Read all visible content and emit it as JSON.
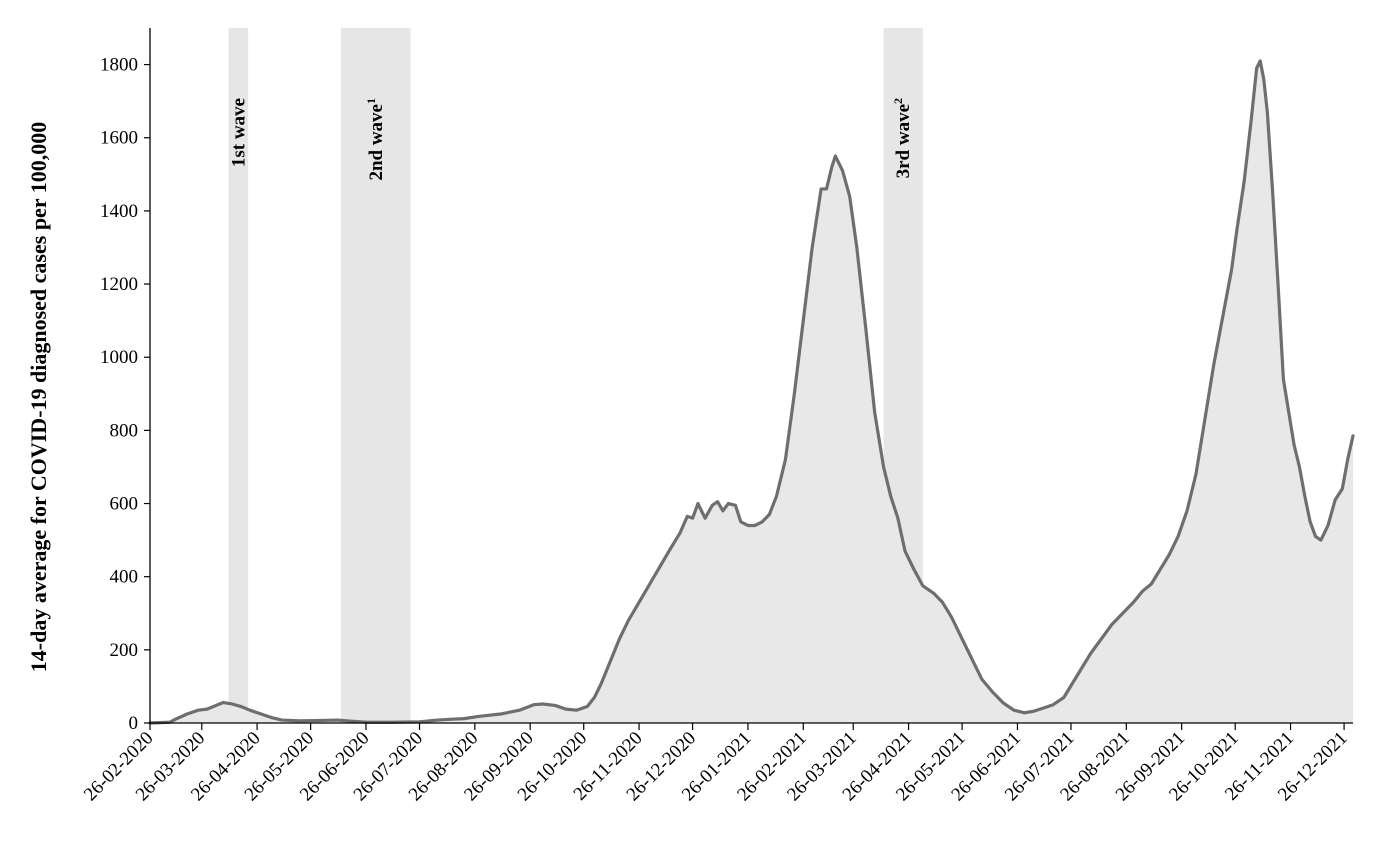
{
  "chart_data": {
    "type": "area",
    "title": "",
    "xlabel": "",
    "ylabel": "14-day average for COVID-19 diagnosed cases per 100,000",
    "ylim": [
      0,
      1900
    ],
    "y_ticks": [
      0,
      200,
      400,
      600,
      800,
      1000,
      1200,
      1400,
      1600,
      1800
    ],
    "x_range": [
      "2020-02-26",
      "2021-12-31"
    ],
    "x_ticks": [
      {
        "date": "2020-02-26",
        "label": "26-02-2020"
      },
      {
        "date": "2020-03-26",
        "label": "26-03-2020"
      },
      {
        "date": "2020-04-26",
        "label": "26-04-2020"
      },
      {
        "date": "2020-05-26",
        "label": "26-05-2020"
      },
      {
        "date": "2020-06-26",
        "label": "26-06-2020"
      },
      {
        "date": "2020-07-26",
        "label": "26-07-2020"
      },
      {
        "date": "2020-08-26",
        "label": "26-08-2020"
      },
      {
        "date": "2020-09-26",
        "label": "26-09-2020"
      },
      {
        "date": "2020-10-26",
        "label": "26-10-2020"
      },
      {
        "date": "2020-11-26",
        "label": "26-11-2020"
      },
      {
        "date": "2020-12-26",
        "label": "26-12-2020"
      },
      {
        "date": "2021-01-26",
        "label": "26-01-2021"
      },
      {
        "date": "2021-02-26",
        "label": "26-02-2021"
      },
      {
        "date": "2021-03-26",
        "label": "26-03-2021"
      },
      {
        "date": "2021-04-26",
        "label": "26-04-2021"
      },
      {
        "date": "2021-05-26",
        "label": "26-05-2021"
      },
      {
        "date": "2021-06-26",
        "label": "26-06-2021"
      },
      {
        "date": "2021-07-26",
        "label": "26-07-2021"
      },
      {
        "date": "2021-08-26",
        "label": "26-08-2021"
      },
      {
        "date": "2021-09-26",
        "label": "26-09-2021"
      },
      {
        "date": "2021-10-26",
        "label": "26-10-2021"
      },
      {
        "date": "2021-11-26",
        "label": "26-11-2021"
      },
      {
        "date": "2021-12-26",
        "label": "26-12-2021"
      }
    ],
    "bands": [
      {
        "label": "1st wave",
        "sup": "",
        "start": "2020-04-10",
        "end": "2020-04-21"
      },
      {
        "label": "2nd wave",
        "sup": "1",
        "start": "2020-06-12",
        "end": "2020-07-21"
      },
      {
        "label": "3rd wave",
        "sup": "2",
        "start": "2021-04-12",
        "end": "2021-05-04"
      }
    ],
    "grid": false,
    "line_color": "#6e6e6e",
    "fill_color": "#e8e8e8",
    "band_color": "#e6e6e6",
    "series": [
      {
        "points": [
          [
            "2020-02-26",
            0
          ],
          [
            "2020-03-08",
            2
          ],
          [
            "2020-03-12",
            12
          ],
          [
            "2020-03-18",
            25
          ],
          [
            "2020-03-24",
            35
          ],
          [
            "2020-03-29",
            38
          ],
          [
            "2020-04-03",
            48
          ],
          [
            "2020-04-07",
            56
          ],
          [
            "2020-04-12",
            52
          ],
          [
            "2020-04-17",
            45
          ],
          [
            "2020-04-22",
            35
          ],
          [
            "2020-04-28",
            25
          ],
          [
            "2020-05-04",
            15
          ],
          [
            "2020-05-10",
            8
          ],
          [
            "2020-05-20",
            6
          ],
          [
            "2020-06-01",
            7
          ],
          [
            "2020-06-10",
            8
          ],
          [
            "2020-06-18",
            5
          ],
          [
            "2020-06-26",
            2
          ],
          [
            "2020-07-10",
            2
          ],
          [
            "2020-07-26",
            3
          ],
          [
            "2020-08-05",
            8
          ],
          [
            "2020-08-12",
            10
          ],
          [
            "2020-08-20",
            12
          ],
          [
            "2020-08-28",
            18
          ],
          [
            "2020-09-10",
            25
          ],
          [
            "2020-09-20",
            35
          ],
          [
            "2020-09-28",
            50
          ],
          [
            "2020-10-03",
            52
          ],
          [
            "2020-10-10",
            48
          ],
          [
            "2020-10-16",
            38
          ],
          [
            "2020-10-22",
            35
          ],
          [
            "2020-10-28",
            45
          ],
          [
            "2020-11-01",
            70
          ],
          [
            "2020-11-05",
            110
          ],
          [
            "2020-11-10",
            170
          ],
          [
            "2020-11-15",
            230
          ],
          [
            "2020-11-20",
            280
          ],
          [
            "2020-11-26",
            330
          ],
          [
            "2020-12-02",
            380
          ],
          [
            "2020-12-08",
            430
          ],
          [
            "2020-12-14",
            480
          ],
          [
            "2020-12-19",
            520
          ],
          [
            "2020-12-23",
            565
          ],
          [
            "2020-12-26",
            560
          ],
          [
            "2020-12-29",
            600
          ],
          [
            "2021-01-02",
            560
          ],
          [
            "2021-01-06",
            595
          ],
          [
            "2021-01-09",
            605
          ],
          [
            "2021-01-12",
            580
          ],
          [
            "2021-01-15",
            600
          ],
          [
            "2021-01-19",
            595
          ],
          [
            "2021-01-22",
            550
          ],
          [
            "2021-01-26",
            540
          ],
          [
            "2021-01-30",
            540
          ],
          [
            "2021-02-03",
            550
          ],
          [
            "2021-02-07",
            570
          ],
          [
            "2021-02-11",
            620
          ],
          [
            "2021-02-16",
            720
          ],
          [
            "2021-02-21",
            900
          ],
          [
            "2021-02-26",
            1100
          ],
          [
            "2021-03-03",
            1300
          ],
          [
            "2021-03-08",
            1460
          ],
          [
            "2021-03-11",
            1460
          ],
          [
            "2021-03-14",
            1520
          ],
          [
            "2021-03-16",
            1550
          ],
          [
            "2021-03-20",
            1510
          ],
          [
            "2021-03-24",
            1440
          ],
          [
            "2021-03-28",
            1300
          ],
          [
            "2021-04-02",
            1080
          ],
          [
            "2021-04-07",
            850
          ],
          [
            "2021-04-12",
            700
          ],
          [
            "2021-04-16",
            620
          ],
          [
            "2021-04-20",
            560
          ],
          [
            "2021-04-24",
            470
          ],
          [
            "2021-04-29",
            420
          ],
          [
            "2021-05-04",
            375
          ],
          [
            "2021-05-10",
            355
          ],
          [
            "2021-05-15",
            330
          ],
          [
            "2021-05-20",
            290
          ],
          [
            "2021-05-26",
            230
          ],
          [
            "2021-06-01",
            170
          ],
          [
            "2021-06-06",
            120
          ],
          [
            "2021-06-12",
            85
          ],
          [
            "2021-06-18",
            55
          ],
          [
            "2021-06-24",
            35
          ],
          [
            "2021-06-30",
            28
          ],
          [
            "2021-07-05",
            32
          ],
          [
            "2021-07-10",
            40
          ],
          [
            "2021-07-16",
            50
          ],
          [
            "2021-07-22",
            70
          ],
          [
            "2021-07-27",
            110
          ],
          [
            "2021-08-01",
            150
          ],
          [
            "2021-08-06",
            190
          ],
          [
            "2021-08-12",
            230
          ],
          [
            "2021-08-18",
            270
          ],
          [
            "2021-08-24",
            300
          ],
          [
            "2021-08-30",
            330
          ],
          [
            "2021-09-04",
            360
          ],
          [
            "2021-09-09",
            380
          ],
          [
            "2021-09-14",
            420
          ],
          [
            "2021-09-19",
            460
          ],
          [
            "2021-09-24",
            510
          ],
          [
            "2021-09-29",
            580
          ],
          [
            "2021-10-04",
            680
          ],
          [
            "2021-10-09",
            830
          ],
          [
            "2021-10-14",
            980
          ],
          [
            "2021-10-19",
            1110
          ],
          [
            "2021-10-24",
            1240
          ],
          [
            "2021-10-27",
            1350
          ],
          [
            "2021-10-31",
            1480
          ],
          [
            "2021-11-04",
            1650
          ],
          [
            "2021-11-07",
            1790
          ],
          [
            "2021-11-09",
            1810
          ],
          [
            "2021-11-11",
            1760
          ],
          [
            "2021-11-13",
            1670
          ],
          [
            "2021-11-16",
            1450
          ],
          [
            "2021-11-19",
            1200
          ],
          [
            "2021-11-22",
            940
          ],
          [
            "2021-11-25",
            850
          ],
          [
            "2021-11-28",
            760
          ],
          [
            "2021-12-01",
            700
          ],
          [
            "2021-12-04",
            620
          ],
          [
            "2021-12-07",
            550
          ],
          [
            "2021-12-10",
            510
          ],
          [
            "2021-12-13",
            500
          ],
          [
            "2021-12-17",
            540
          ],
          [
            "2021-12-21",
            610
          ],
          [
            "2021-12-25",
            640
          ],
          [
            "2021-12-28",
            720
          ],
          [
            "2021-12-31",
            785
          ]
        ]
      }
    ]
  }
}
